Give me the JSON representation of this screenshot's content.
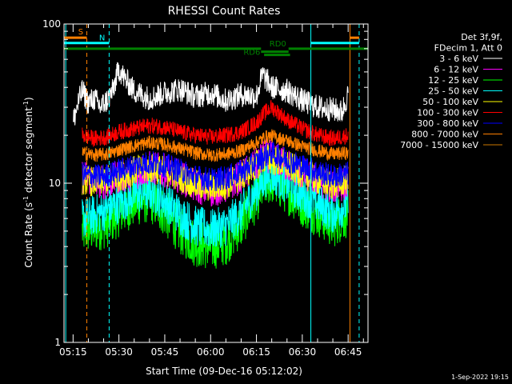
{
  "chart_data": {
    "type": "line",
    "title": "RHESSI Count Rates",
    "xlabel": "Start Time (09-Dec-16 05:12:02)",
    "ylabel": "Count Rate (s⁻¹ detector segment⁻¹)",
    "ylabel_parts": {
      "base": "Count Rate (s",
      "sup1": "-1",
      "mid": " detector segment",
      "sup2": "-1",
      "end": ")"
    },
    "yscale": "log",
    "ylim": [
      1,
      100
    ],
    "y_tick_labels": [
      "1",
      "10",
      "100"
    ],
    "x_tick_labels": [
      "05:15",
      "05:30",
      "05:45",
      "06:00",
      "06:15",
      "06:30",
      "06:45"
    ],
    "x_tick_minutes": [
      15,
      30,
      45,
      60,
      75,
      90,
      105
    ],
    "xlim_minutes": [
      12.03,
      111.5
    ],
    "info_lines": [
      "Det 3f,9f,",
      "FDecim 1, Att 0"
    ],
    "series": [
      {
        "name": "3 - 6 keV",
        "color": "#ffffff",
        "x": [
          15,
          18,
          20,
          22,
          24,
          26,
          28,
          30,
          32,
          35,
          40,
          45,
          50,
          55,
          60,
          65,
          70,
          75,
          77,
          80,
          85,
          90,
          95,
          100,
          103,
          105
        ],
        "y": [
          24,
          38,
          32,
          34,
          30,
          33,
          38,
          52,
          45,
          38,
          34,
          37,
          39,
          35,
          37,
          33,
          36,
          35,
          48,
          40,
          38,
          33,
          30,
          29,
          28,
          36
        ]
      },
      {
        "name": "6 - 12 keV",
        "color": "#ff00ff",
        "x": [
          18,
          22,
          26,
          30,
          35,
          40,
          45,
          50,
          55,
          60,
          65,
          70,
          75,
          78,
          80,
          85,
          90,
          95,
          100,
          105
        ],
        "y": [
          11,
          10.5,
          10,
          11,
          11.5,
          12.5,
          12,
          11,
          9.5,
          9,
          9.5,
          11,
          13,
          15,
          14.5,
          13,
          11.5,
          10.5,
          9.5,
          10
        ]
      },
      {
        "name": "12 - 25 keV",
        "color": "#00ff00",
        "x": [
          18,
          22,
          26,
          30,
          35,
          40,
          45,
          50,
          55,
          60,
          65,
          70,
          75,
          78,
          80,
          85,
          90,
          95,
          100,
          105
        ],
        "y": [
          5,
          5.2,
          5.5,
          6.5,
          7.5,
          8,
          6.5,
          5,
          4.2,
          4,
          4.3,
          5.5,
          8,
          10,
          10.5,
          9,
          7.5,
          6.5,
          5.5,
          6.5
        ]
      },
      {
        "name": "25 - 50 keV",
        "color": "#00ffff",
        "x": [
          18,
          22,
          26,
          30,
          35,
          40,
          45,
          50,
          55,
          60,
          65,
          70,
          75,
          78,
          80,
          85,
          90,
          95,
          100,
          105
        ],
        "y": [
          6,
          6.3,
          6.8,
          7.5,
          8.5,
          9,
          7.8,
          6.3,
          5.4,
          5.1,
          5.4,
          6.5,
          9,
          11,
          11.5,
          10,
          8.5,
          7.5,
          6.5,
          7.5
        ]
      },
      {
        "name": "50 - 100 keV",
        "color": "#ffff00",
        "x": [
          18,
          22,
          26,
          30,
          35,
          40,
          45,
          50,
          55,
          60,
          65,
          70,
          75,
          78,
          80,
          85,
          90,
          95,
          100,
          105
        ],
        "y": [
          10.5,
          10.2,
          10.5,
          11,
          12,
          12.5,
          12,
          11,
          9.8,
          9.5,
          9.8,
          11,
          13,
          14.5,
          14,
          13,
          11.5,
          10.5,
          9.8,
          10.5
        ]
      },
      {
        "name": "100 - 300 keV",
        "color": "#ff0000",
        "x": [
          18,
          22,
          26,
          30,
          35,
          40,
          45,
          50,
          55,
          60,
          65,
          70,
          75,
          78,
          80,
          83,
          85,
          90,
          95,
          100,
          105
        ],
        "y": [
          20,
          19,
          19.5,
          21,
          22,
          23,
          22.5,
          21,
          20,
          19.5,
          20,
          21,
          24,
          28,
          30,
          27,
          25,
          22,
          20,
          19,
          20
        ]
      },
      {
        "name": "300 - 800 keV",
        "color": "#0000ff",
        "x": [
          18,
          22,
          26,
          30,
          35,
          40,
          45,
          50,
          55,
          60,
          65,
          70,
          75,
          78,
          80,
          85,
          90,
          95,
          100,
          105
        ],
        "y": [
          11.5,
          11,
          11.2,
          12,
          12.8,
          13.5,
          13,
          12,
          11,
          10.5,
          10.8,
          11.8,
          13.5,
          15,
          15.5,
          14,
          12.8,
          11.8,
          11,
          11.5
        ]
      },
      {
        "name": "800 - 7000 keV",
        "color": "#ff8000",
        "x": [
          18,
          22,
          26,
          30,
          35,
          40,
          45,
          50,
          55,
          60,
          65,
          70,
          75,
          78,
          80,
          85,
          90,
          95,
          100,
          105
        ],
        "y": [
          15.5,
          15,
          15.2,
          16.2,
          17.2,
          18,
          17.5,
          16.5,
          15.5,
          15,
          15.2,
          16,
          18,
          19.5,
          19.8,
          18.5,
          17,
          16,
          15.2,
          15.5
        ]
      },
      {
        "name": "7000 - 15000 keV",
        "color": "#cc7700",
        "x": [
          15,
          105
        ],
        "y": [
          1,
          1
        ]
      }
    ],
    "v_lines": [
      {
        "x": 12.6,
        "color": "#00ffff",
        "style": "solid"
      },
      {
        "x": 19.5,
        "color": "#ff8000",
        "style": "dashed"
      },
      {
        "x": 26.8,
        "color": "#00ffff",
        "style": "dashed"
      },
      {
        "x": 92.8,
        "color": "#00ffff",
        "style": "solid"
      },
      {
        "x": 105.6,
        "color": "#ff8000",
        "style": "solid"
      },
      {
        "x": 108.6,
        "color": "#00ffff",
        "style": "dashed"
      }
    ],
    "h_bars": [
      {
        "x0": 12.03,
        "x1": 19.5,
        "y": 82,
        "color": "#ff8000",
        "label": "S"
      },
      {
        "x0": 12.03,
        "x1": 26.8,
        "y": 76,
        "color": "#00ffff",
        "label": "N"
      },
      {
        "x0": 92.8,
        "x1": 108.6,
        "y": 76,
        "color": "#00ffff"
      },
      {
        "x0": 105.6,
        "x1": 108.6,
        "y": 82,
        "color": "#ff8000"
      },
      {
        "x0": 12.03,
        "x1": 76.5,
        "y": 70,
        "color": "#008000"
      },
      {
        "x0": 76.5,
        "x1": 85.5,
        "y": 67,
        "color": "#008000",
        "label": "RD6"
      },
      {
        "x0": 85.5,
        "x1": 111.5,
        "y": 70,
        "color": "#008000"
      },
      {
        "x0": 77.5,
        "x1": 86,
        "y": 64,
        "color": "#008000",
        "label": "RD0"
      }
    ]
  },
  "footer": {
    "date": "1-Sep-2022 19:15"
  }
}
